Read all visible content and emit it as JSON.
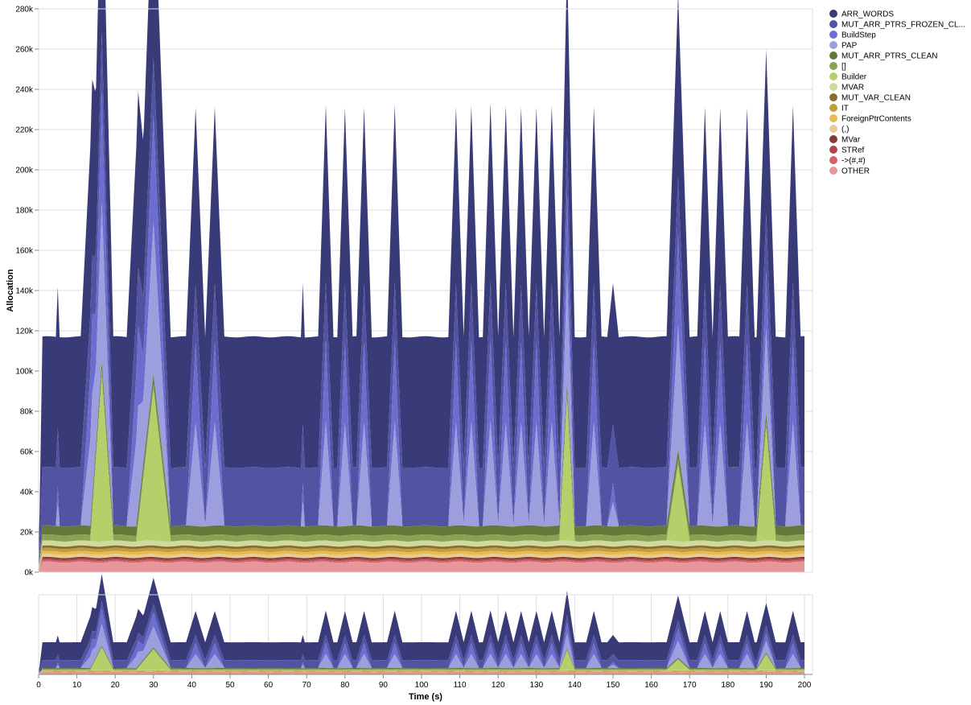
{
  "chart_data": {
    "type": "area",
    "stacked": true,
    "xlabel": "Time (s)",
    "ylabel": "Allocation",
    "xlim": [
      0,
      200
    ],
    "ylim": [
      0,
      280000
    ],
    "x_ticks": [
      "0",
      "10",
      "20",
      "30",
      "40",
      "50",
      "60",
      "70",
      "80",
      "90",
      "100",
      "110",
      "120",
      "130",
      "140",
      "150",
      "160",
      "170",
      "180",
      "190",
      "200"
    ],
    "y_ticks": [
      "0k",
      "20k",
      "40k",
      "60k",
      "80k",
      "100k",
      "120k",
      "140k",
      "160k",
      "180k",
      "200k",
      "220k",
      "240k",
      "260k",
      "280k"
    ],
    "grid": true,
    "legend_position": "right",
    "has_overview_panel": true,
    "series": [
      {
        "name": "ARR_WORDS",
        "color": "#393b79"
      },
      {
        "name": "MUT_ARR_PTRS_FROZEN_CL...",
        "color": "#5254a3"
      },
      {
        "name": "BuildStep",
        "color": "#6b6ecf"
      },
      {
        "name": "PAP",
        "color": "#9c9ede"
      },
      {
        "name": "MUT_ARR_PTRS_CLEAN",
        "color": "#637939"
      },
      {
        "name": "[]",
        "color": "#8ca252"
      },
      {
        "name": "Builder",
        "color": "#b5cf6b"
      },
      {
        "name": "MVAR",
        "color": "#cedb9c"
      },
      {
        "name": "MUT_VAR_CLEAN",
        "color": "#8c6d31"
      },
      {
        "name": "IT",
        "color": "#bd9e39"
      },
      {
        "name": "ForeignPtrContents",
        "color": "#e7ba52"
      },
      {
        "name": "(,)",
        "color": "#e7cb94"
      },
      {
        "name": "MVar",
        "color": "#843c39"
      },
      {
        "name": "STRef",
        "color": "#ad494a"
      },
      {
        "name": "->(#,#)",
        "color": "#d6616b"
      },
      {
        "name": "OTHER",
        "color": "#e7969c"
      }
    ],
    "base_values": {
      "ARR_WORDS": 65000,
      "MUT_ARR_PTRS_FROZEN_CL...": 29000,
      "BuildStep": 0,
      "PAP": 0,
      "MUT_ARR_PTRS_CLEAN": 4500,
      "[]": 3000,
      "Builder": 0,
      "MVAR": 2500,
      "MUT_VAR_CLEAN": 1200,
      "IT": 1500,
      "ForeignPtrContents": 1500,
      "(,)": 1500,
      "MVar": 800,
      "STRef": 700,
      "->(#,#)": 800,
      "OTHER": 5000
    },
    "spikes": [
      {
        "t": 5,
        "total": 135000,
        "half_width": 0.5
      },
      {
        "t": 14,
        "total": 223000,
        "half_width": 3
      },
      {
        "t": 16.5,
        "total": 268000,
        "half_width": 3,
        "builder": 82000
      },
      {
        "t": 26,
        "total": 223000,
        "half_width": 3
      },
      {
        "t": 30,
        "total": 262000,
        "half_width": 4.5,
        "builder": 75000
      },
      {
        "t": 41,
        "total": 224000,
        "half_width": 2.5
      },
      {
        "t": 46,
        "total": 224000,
        "half_width": 2.5
      },
      {
        "t": 69,
        "total": 137000,
        "half_width": 0.5
      },
      {
        "t": 75,
        "total": 225000,
        "half_width": 2
      },
      {
        "t": 80,
        "total": 224000,
        "half_width": 2
      },
      {
        "t": 85,
        "total": 224000,
        "half_width": 2
      },
      {
        "t": 93,
        "total": 225000,
        "half_width": 2
      },
      {
        "t": 109,
        "total": 224000,
        "half_width": 2
      },
      {
        "t": 113,
        "total": 225000,
        "half_width": 2
      },
      {
        "t": 118,
        "total": 226000,
        "half_width": 2
      },
      {
        "t": 122,
        "total": 225000,
        "half_width": 2
      },
      {
        "t": 126,
        "total": 224000,
        "half_width": 2
      },
      {
        "t": 130,
        "total": 224000,
        "half_width": 2
      },
      {
        "t": 134,
        "total": 225000,
        "half_width": 2
      },
      {
        "t": 138,
        "total": 220000,
        "half_width": 2,
        "builder": 70000
      },
      {
        "t": 145,
        "total": 224000,
        "half_width": 2
      },
      {
        "t": 150,
        "total": 137000,
        "half_width": 1.5
      },
      {
        "t": 167,
        "total": 239000,
        "half_width": 3,
        "builder": 38000
      },
      {
        "t": 174,
        "total": 224000,
        "half_width": 2
      },
      {
        "t": 178,
        "total": 224000,
        "half_width": 2
      },
      {
        "t": 185,
        "total": 224000,
        "half_width": 2
      },
      {
        "t": 190,
        "total": 191000,
        "half_width": 2.5,
        "builder": 56000
      },
      {
        "t": 197,
        "total": 225000,
        "half_width": 2
      }
    ]
  }
}
